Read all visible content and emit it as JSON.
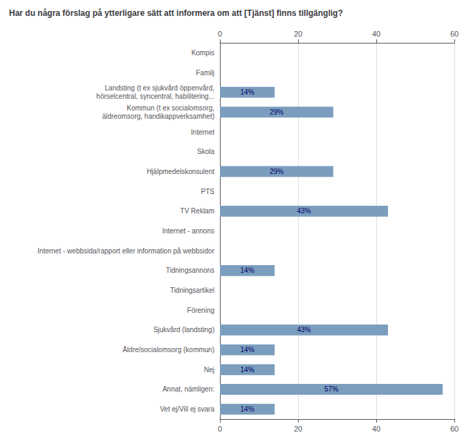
{
  "chart_data": {
    "type": "bar",
    "orientation": "horizontal",
    "title": "Har du några förslag på ytterligare sätt att informera om att [Tjänst] finns tillgänglig?",
    "categories": [
      "Kompis",
      "Familj",
      "Landsting (t ex sjukvård öppenvård,\nhörselcentral, syncentral, habilitering...",
      "Kommun (t ex socialomsorg,\näldreomsorg, handikappverksamhet)",
      "Internet",
      "Skola",
      "Hjälpmedelskonsulent",
      "PTS",
      "TV Reklam",
      "Internet - annons",
      "Internet - webbsida/rapport eller information på webbsidor",
      "Tidningsannons",
      "Tidningsartikel",
      "Förening",
      "Sjukvård (landsting)",
      "Äldre/socialomsorg (kommun)",
      "Nej",
      "Annat, nämligen:",
      "Vet ej/Vill ej svara"
    ],
    "values": [
      0,
      0,
      14,
      29,
      0,
      0,
      29,
      0,
      43,
      0,
      0,
      14,
      0,
      0,
      43,
      14,
      14,
      57,
      14
    ],
    "value_labels": [
      null,
      null,
      "14%",
      "29%",
      null,
      null,
      "29%",
      null,
      "43%",
      null,
      null,
      "14%",
      null,
      null,
      "43%",
      "14%",
      "14%",
      "57%",
      "14%"
    ],
    "data_labels": true,
    "color": "#7b9ebe",
    "xlim": [
      0,
      60
    ],
    "xticks": [
      0,
      20,
      40,
      60
    ],
    "grid": true
  }
}
